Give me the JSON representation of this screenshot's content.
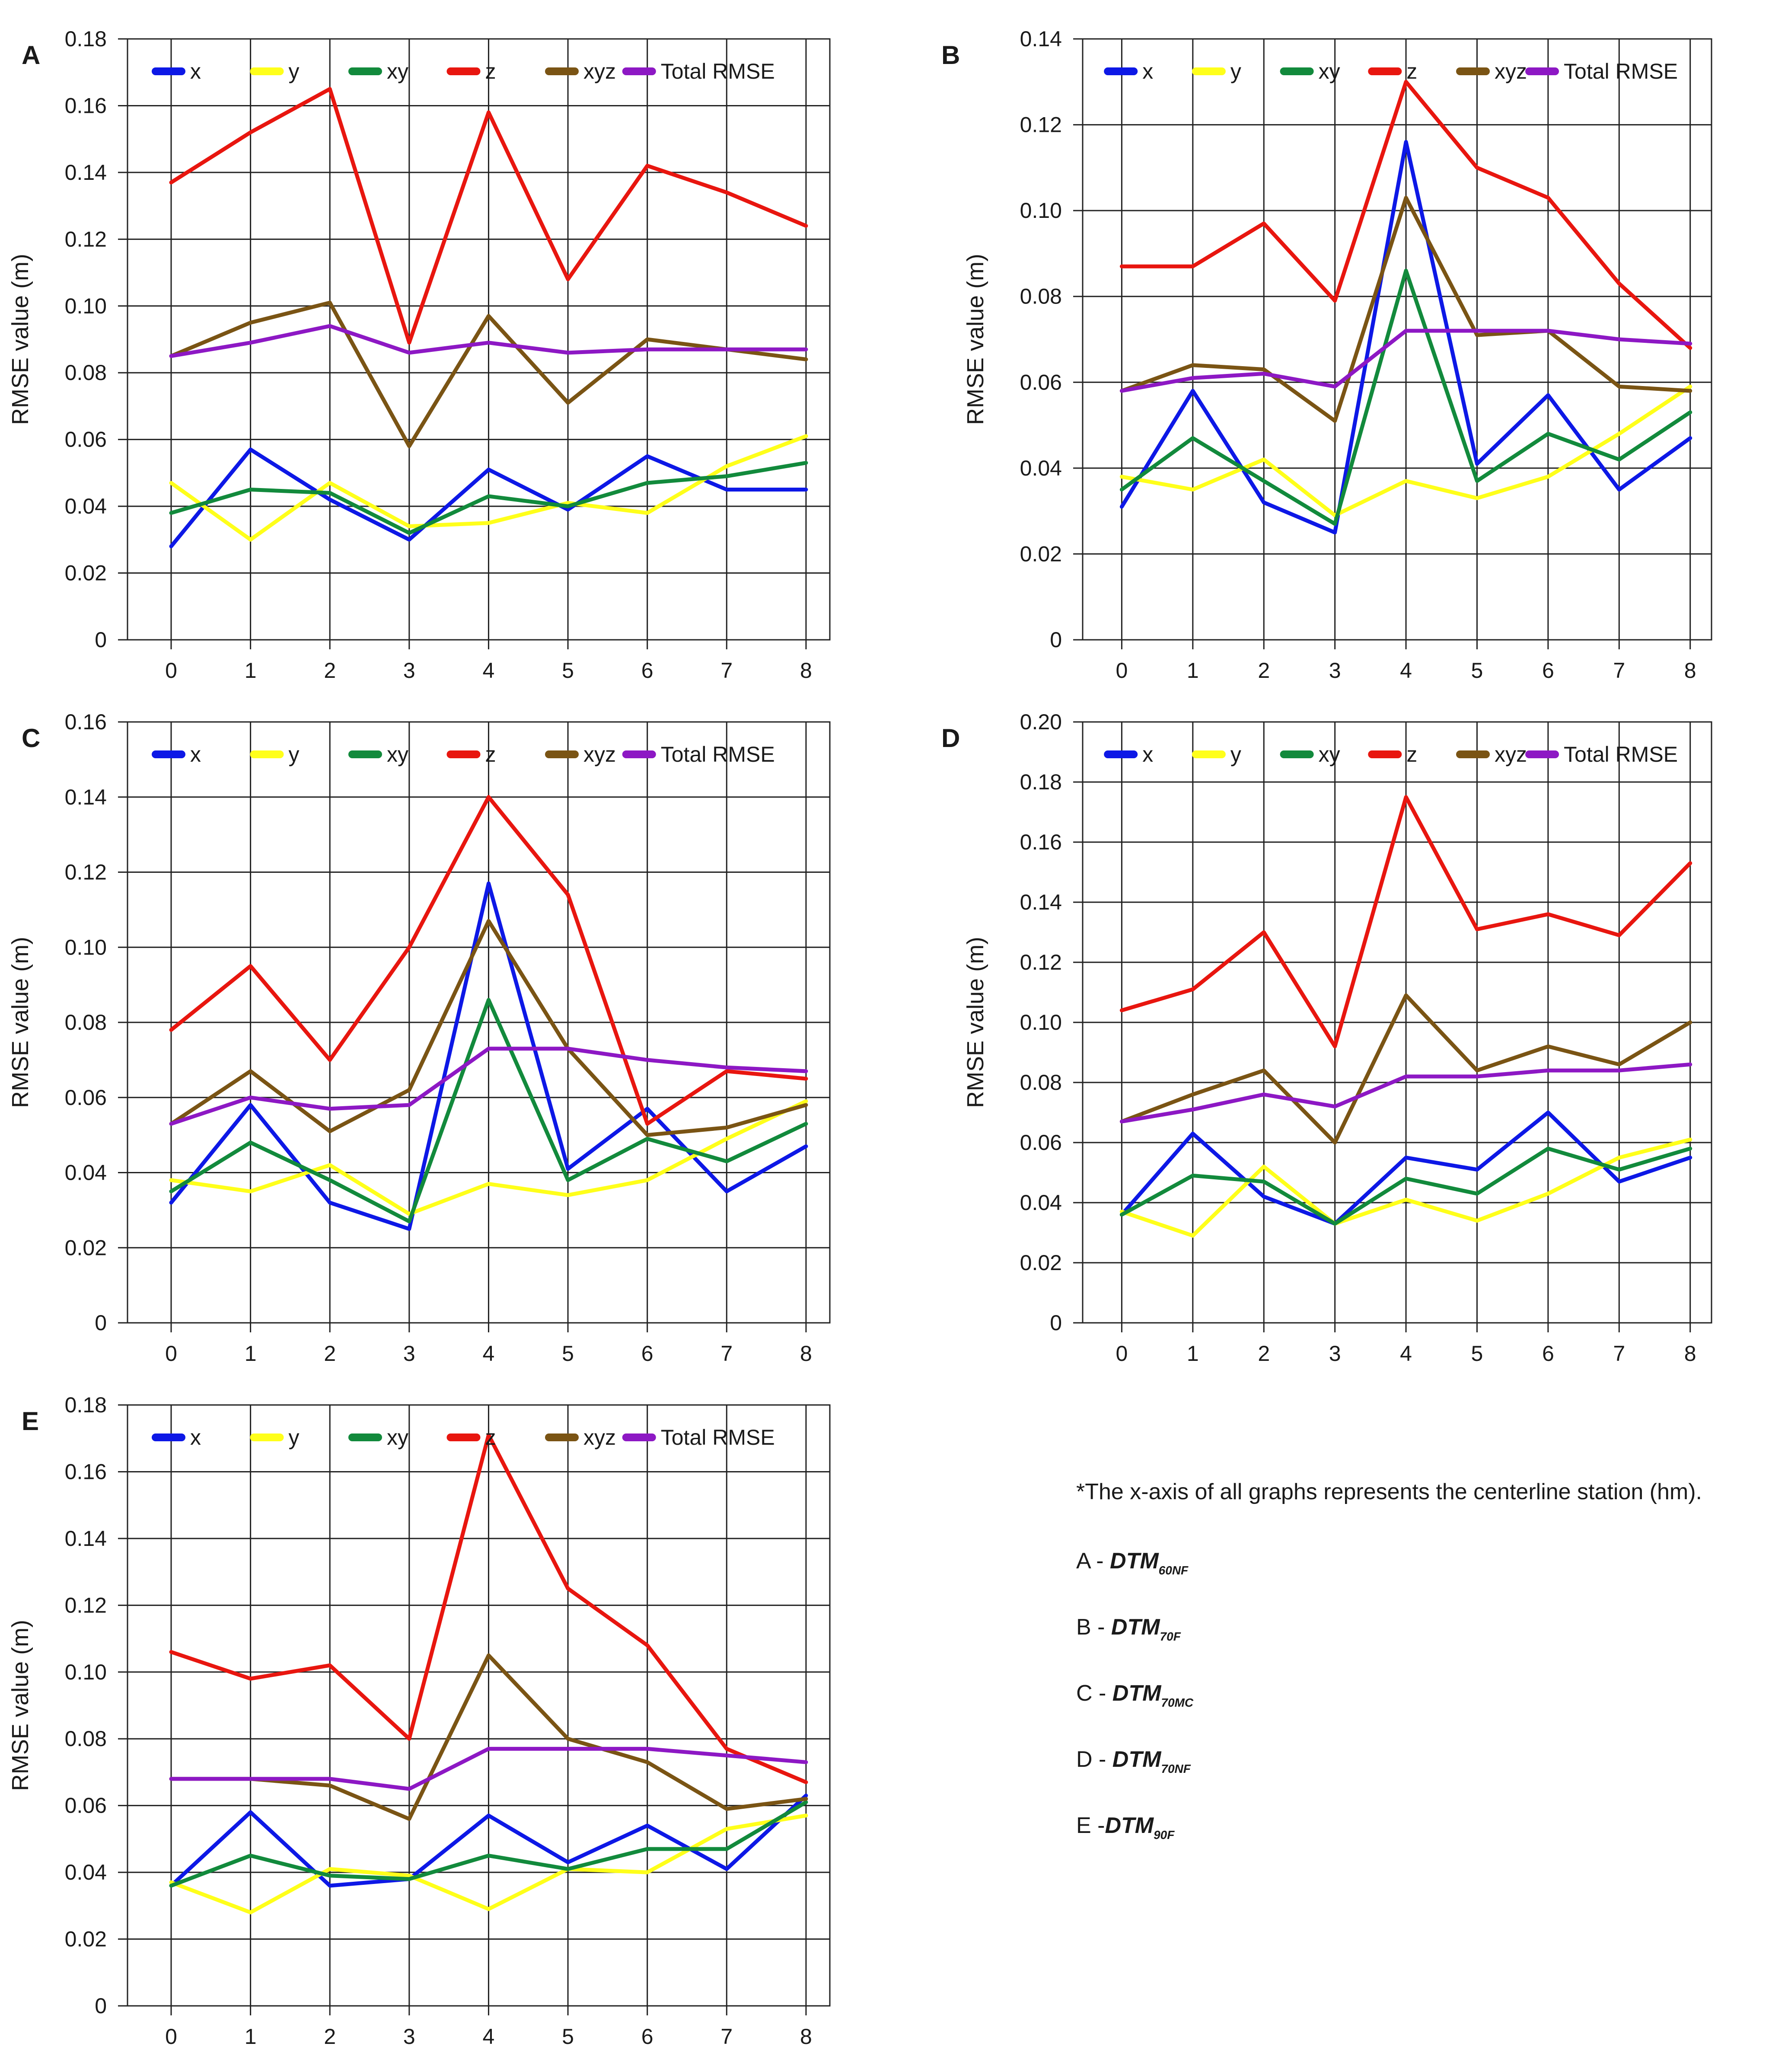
{
  "figure": {
    "ylabel": "RMSE value (m)",
    "legend_entries": [
      "x",
      "y",
      "xy",
      "z",
      "xyz",
      "Total RMSE"
    ],
    "series_colors": [
      "#0d18e6",
      "#ffff1a",
      "#128a3c",
      "#e8160f",
      "#7a5414",
      "#8d18c4"
    ]
  },
  "notes": {
    "caption": "*The x-axis of all graphs represents the centerline station (hm).",
    "items": [
      {
        "prefix": "A - ",
        "name": "DTM",
        "sub": "60NF"
      },
      {
        "prefix": "B - ",
        "name": "DTM",
        "sub": "70F"
      },
      {
        "prefix": "C - ",
        "name": "DTM",
        "sub": "70MC"
      },
      {
        "prefix": "D - ",
        "name": "DTM",
        "sub": "70NF"
      },
      {
        "prefix": "E -",
        "name": "DTM",
        "sub": "90F"
      }
    ]
  },
  "chart_data": [
    {
      "panel": "A",
      "type": "line",
      "x": [
        0,
        1,
        2,
        3,
        4,
        5,
        6,
        7,
        8
      ],
      "xticks": [
        "0",
        "1",
        "2",
        "3",
        "4",
        "5",
        "6",
        "7",
        "8"
      ],
      "ylim": [
        0,
        0.18
      ],
      "yticks": [
        "0",
        "0.02",
        "0.04",
        "0.06",
        "0.08",
        "0.10",
        "0.12",
        "0.14",
        "0.16",
        "0.18"
      ],
      "ylabel": "RMSE value (m)",
      "grid": true,
      "legend": "top",
      "series": [
        {
          "name": "x",
          "values": [
            0.028,
            0.057,
            0.042,
            0.03,
            0.051,
            0.039,
            0.055,
            0.045,
            0.045
          ]
        },
        {
          "name": "y",
          "values": [
            0.047,
            0.03,
            0.047,
            0.034,
            0.035,
            0.041,
            0.038,
            0.052,
            0.061
          ]
        },
        {
          "name": "xy",
          "values": [
            0.038,
            0.045,
            0.044,
            0.032,
            0.043,
            0.04,
            0.047,
            0.049,
            0.053
          ]
        },
        {
          "name": "z",
          "values": [
            0.137,
            0.152,
            0.165,
            0.089,
            0.158,
            0.108,
            0.142,
            0.134,
            0.124
          ]
        },
        {
          "name": "xyz",
          "values": [
            0.085,
            0.095,
            0.101,
            0.058,
            0.097,
            0.071,
            0.09,
            0.087,
            0.084
          ]
        },
        {
          "name": "Total RMSE",
          "values": [
            0.085,
            0.089,
            0.094,
            0.086,
            0.089,
            0.086,
            0.087,
            0.087,
            0.087
          ]
        }
      ]
    },
    {
      "panel": "B",
      "type": "line",
      "x": [
        0,
        1,
        2,
        3,
        4,
        5,
        6,
        7,
        8
      ],
      "xticks": [
        "0",
        "1",
        "2",
        "3",
        "4",
        "5",
        "6",
        "7",
        "8"
      ],
      "ylim": [
        0,
        0.14
      ],
      "yticks": [
        "0",
        "0.02",
        "0.04",
        "0.06",
        "0.08",
        "0.10",
        "0.12",
        "0.14"
      ],
      "ylabel": "RMSE value (m)",
      "grid": true,
      "legend": "top",
      "series": [
        {
          "name": "x",
          "values": [
            0.031,
            0.058,
            0.032,
            0.025,
            0.116,
            0.041,
            0.057,
            0.035,
            0.047
          ]
        },
        {
          "name": "y",
          "values": [
            0.038,
            0.035,
            0.042,
            0.029,
            0.037,
            0.033,
            0.038,
            0.048,
            0.059
          ]
        },
        {
          "name": "xy",
          "values": [
            0.035,
            0.047,
            0.037,
            0.027,
            0.086,
            0.037,
            0.048,
            0.042,
            0.053
          ]
        },
        {
          "name": "z",
          "values": [
            0.087,
            0.087,
            0.097,
            0.079,
            0.13,
            0.11,
            0.103,
            0.083,
            0.068
          ]
        },
        {
          "name": "xyz",
          "values": [
            0.058,
            0.064,
            0.063,
            0.051,
            0.103,
            0.071,
            0.072,
            0.059,
            0.058
          ]
        },
        {
          "name": "Total RMSE",
          "values": [
            0.058,
            0.061,
            0.062,
            0.059,
            0.072,
            0.072,
            0.072,
            0.07,
            0.069
          ]
        }
      ]
    },
    {
      "panel": "C",
      "type": "line",
      "x": [
        0,
        1,
        2,
        3,
        4,
        5,
        6,
        7,
        8
      ],
      "xticks": [
        "0",
        "1",
        "2",
        "3",
        "4",
        "5",
        "6",
        "7",
        "8"
      ],
      "ylim": [
        0,
        0.16
      ],
      "yticks": [
        "0",
        "0.02",
        "0.04",
        "0.06",
        "0.08",
        "0.10",
        "0.12",
        "0.14",
        "0.16"
      ],
      "ylabel": "RMSE value (m)",
      "grid": true,
      "legend": "top",
      "series": [
        {
          "name": "x",
          "values": [
            0.032,
            0.058,
            0.032,
            0.025,
            0.117,
            0.041,
            0.057,
            0.035,
            0.047
          ]
        },
        {
          "name": "y",
          "values": [
            0.038,
            0.035,
            0.042,
            0.029,
            0.037,
            0.034,
            0.038,
            0.049,
            0.059
          ]
        },
        {
          "name": "xy",
          "values": [
            0.035,
            0.048,
            0.038,
            0.027,
            0.086,
            0.038,
            0.049,
            0.043,
            0.053
          ]
        },
        {
          "name": "z",
          "values": [
            0.078,
            0.095,
            0.07,
            0.1,
            0.14,
            0.114,
            0.053,
            0.067,
            0.065
          ]
        },
        {
          "name": "xyz",
          "values": [
            0.053,
            0.067,
            0.051,
            0.062,
            0.107,
            0.073,
            0.05,
            0.052,
            0.058
          ]
        },
        {
          "name": "Total RMSE",
          "values": [
            0.053,
            0.06,
            0.057,
            0.058,
            0.073,
            0.073,
            0.07,
            0.068,
            0.067
          ]
        }
      ]
    },
    {
      "panel": "D",
      "type": "line",
      "x": [
        0,
        1,
        2,
        3,
        4,
        5,
        6,
        7,
        8
      ],
      "xticks": [
        "0",
        "1",
        "2",
        "3",
        "4",
        "5",
        "6",
        "7",
        "8"
      ],
      "ylim": [
        0,
        0.2
      ],
      "yticks": [
        "0",
        "0.02",
        "0.04",
        "0.06",
        "0.08",
        "0.10",
        "0.12",
        "0.14",
        "0.16",
        "0.18",
        "0.20"
      ],
      "ylabel": "RMSE value (m)",
      "grid": true,
      "legend": "top",
      "series": [
        {
          "name": "x",
          "values": [
            0.036,
            0.063,
            0.042,
            0.033,
            0.055,
            0.051,
            0.07,
            0.047,
            0.055
          ]
        },
        {
          "name": "y",
          "values": [
            0.037,
            0.029,
            0.052,
            0.033,
            0.041,
            0.034,
            0.043,
            0.055,
            0.061
          ]
        },
        {
          "name": "xy",
          "values": [
            0.036,
            0.049,
            0.047,
            0.033,
            0.048,
            0.043,
            0.058,
            0.051,
            0.058
          ]
        },
        {
          "name": "z",
          "values": [
            0.104,
            0.111,
            0.13,
            0.092,
            0.175,
            0.131,
            0.136,
            0.129,
            0.153
          ]
        },
        {
          "name": "xyz",
          "values": [
            0.067,
            0.076,
            0.084,
            0.06,
            0.109,
            0.084,
            0.092,
            0.086,
            0.1
          ]
        },
        {
          "name": "Total RMSE",
          "values": [
            0.067,
            0.071,
            0.076,
            0.072,
            0.082,
            0.082,
            0.084,
            0.084,
            0.086
          ]
        }
      ]
    },
    {
      "panel": "E",
      "type": "line",
      "x": [
        0,
        1,
        2,
        3,
        4,
        5,
        6,
        7,
        8
      ],
      "xticks": [
        "0",
        "1",
        "2",
        "3",
        "4",
        "5",
        "6",
        "7",
        "8"
      ],
      "ylim": [
        0,
        0.18
      ],
      "yticks": [
        "0",
        "0.02",
        "0.04",
        "0.06",
        "0.08",
        "0.10",
        "0.12",
        "0.14",
        "0.16",
        "0.18"
      ],
      "ylabel": "RMSE value (m)",
      "grid": true,
      "legend": "top",
      "series": [
        {
          "name": "x",
          "values": [
            0.036,
            0.058,
            0.036,
            0.038,
            0.057,
            0.043,
            0.054,
            0.041,
            0.063
          ]
        },
        {
          "name": "y",
          "values": [
            0.037,
            0.028,
            0.041,
            0.039,
            0.029,
            0.041,
            0.04,
            0.053,
            0.057
          ]
        },
        {
          "name": "xy",
          "values": [
            0.036,
            0.045,
            0.039,
            0.038,
            0.045,
            0.041,
            0.047,
            0.047,
            0.061
          ]
        },
        {
          "name": "z",
          "values": [
            0.106,
            0.098,
            0.102,
            0.08,
            0.171,
            0.125,
            0.108,
            0.077,
            0.067
          ]
        },
        {
          "name": "xyz",
          "values": [
            0.068,
            0.068,
            0.066,
            0.056,
            0.105,
            0.08,
            0.073,
            0.059,
            0.062
          ]
        },
        {
          "name": "Total RMSE",
          "values": [
            0.068,
            0.068,
            0.068,
            0.065,
            0.077,
            0.077,
            0.077,
            0.075,
            0.073
          ]
        }
      ]
    }
  ]
}
